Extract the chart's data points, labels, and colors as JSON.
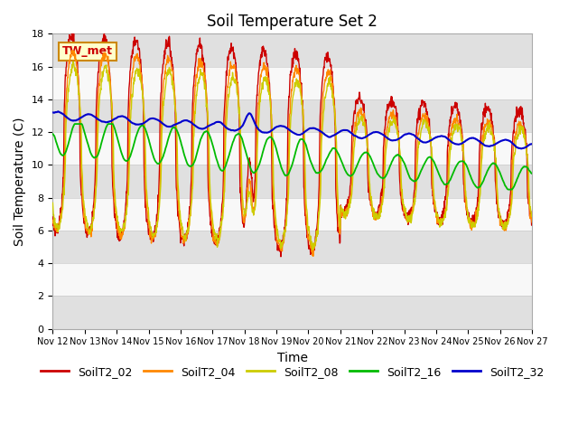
{
  "title": "Soil Temperature Set 2",
  "xlabel": "Time",
  "ylabel": "Soil Temperature (C)",
  "ylim": [
    0,
    18
  ],
  "yticks": [
    0,
    2,
    4,
    6,
    8,
    10,
    12,
    14,
    16,
    18
  ],
  "annotation": "TW_met",
  "series_labels": [
    "SoilT2_02",
    "SoilT2_04",
    "SoilT2_08",
    "SoilT2_16",
    "SoilT2_32"
  ],
  "series_colors": [
    "#cc0000",
    "#ff8800",
    "#cccc00",
    "#00bb00",
    "#0000cc"
  ],
  "line_widths": [
    1.0,
    1.0,
    1.0,
    1.3,
    1.5
  ],
  "bg_band_color": "#e0e0e0",
  "plot_bg": "#f8f8f8",
  "title_fontsize": 12,
  "axis_label_fontsize": 10,
  "tick_fontsize": 8,
  "legend_fontsize": 9,
  "n_points": 1440
}
